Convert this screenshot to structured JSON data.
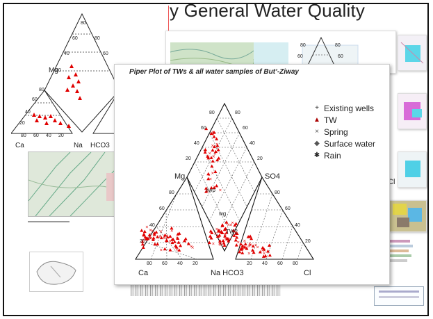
{
  "slide": {
    "title": "y General Water Quality"
  },
  "main_plot": {
    "title": "Piper Plot of TWs & all water samples of Butʼ-Ziway",
    "legend": [
      {
        "marker": "plus-marker",
        "label": "Existing wells"
      },
      {
        "marker": "triangle-marker",
        "label": "TW"
      },
      {
        "marker": "cross-marker",
        "label": "Spring"
      },
      {
        "marker": "diamond-marker",
        "label": "Surface water"
      },
      {
        "marker": "star-marker",
        "label": "Rain"
      }
    ],
    "axis_labels": {
      "mg": "Mg",
      "so4": "SO4",
      "ca": "Ca",
      "na": "Na HCO3",
      "cl": "Cl"
    },
    "diamond_ticks": {
      "left_top": "80",
      "left_upper": "60",
      "left_mid": "40",
      "left_low": "20",
      "right_top": "80",
      "right_upper": "60",
      "right_mid": "40",
      "right_low": "20"
    },
    "cation_ticks": {
      "a": "80",
      "b": "60",
      "c": "40",
      "d": "20",
      "e": "80",
      "f": "60",
      "g": "40",
      "h": "20"
    },
    "anion_ticks": {
      "a": "20",
      "b": "40",
      "c": "60",
      "d": "80",
      "e": "80",
      "f": "60",
      "g": "40",
      "h": "20"
    },
    "sample_labels": {
      "a": "rwp",
      "b": "wg",
      "c": "TW2"
    },
    "marker_color": "#e00000"
  },
  "left_plot": {
    "labels": {
      "mg": "Mg",
      "ca": "Ca",
      "na": "Na",
      "hco3": "HCO3"
    },
    "top_ticks": {
      "a": "80",
      "b": "60",
      "c": "40",
      "d": "20",
      "e": "80",
      "f": "60"
    },
    "left_ticks": {
      "a": "80",
      "b": "60",
      "c": "40",
      "d": "20"
    },
    "bottom_ticks": {
      "a": "80",
      "b": "60",
      "c": "40",
      "d": "20"
    }
  },
  "right_small_plot": {
    "ticks": {
      "a": "80",
      "b": "80",
      "c": "60",
      "d": "60"
    }
  },
  "right_edge_labels": {
    "cl": "Cl"
  }
}
